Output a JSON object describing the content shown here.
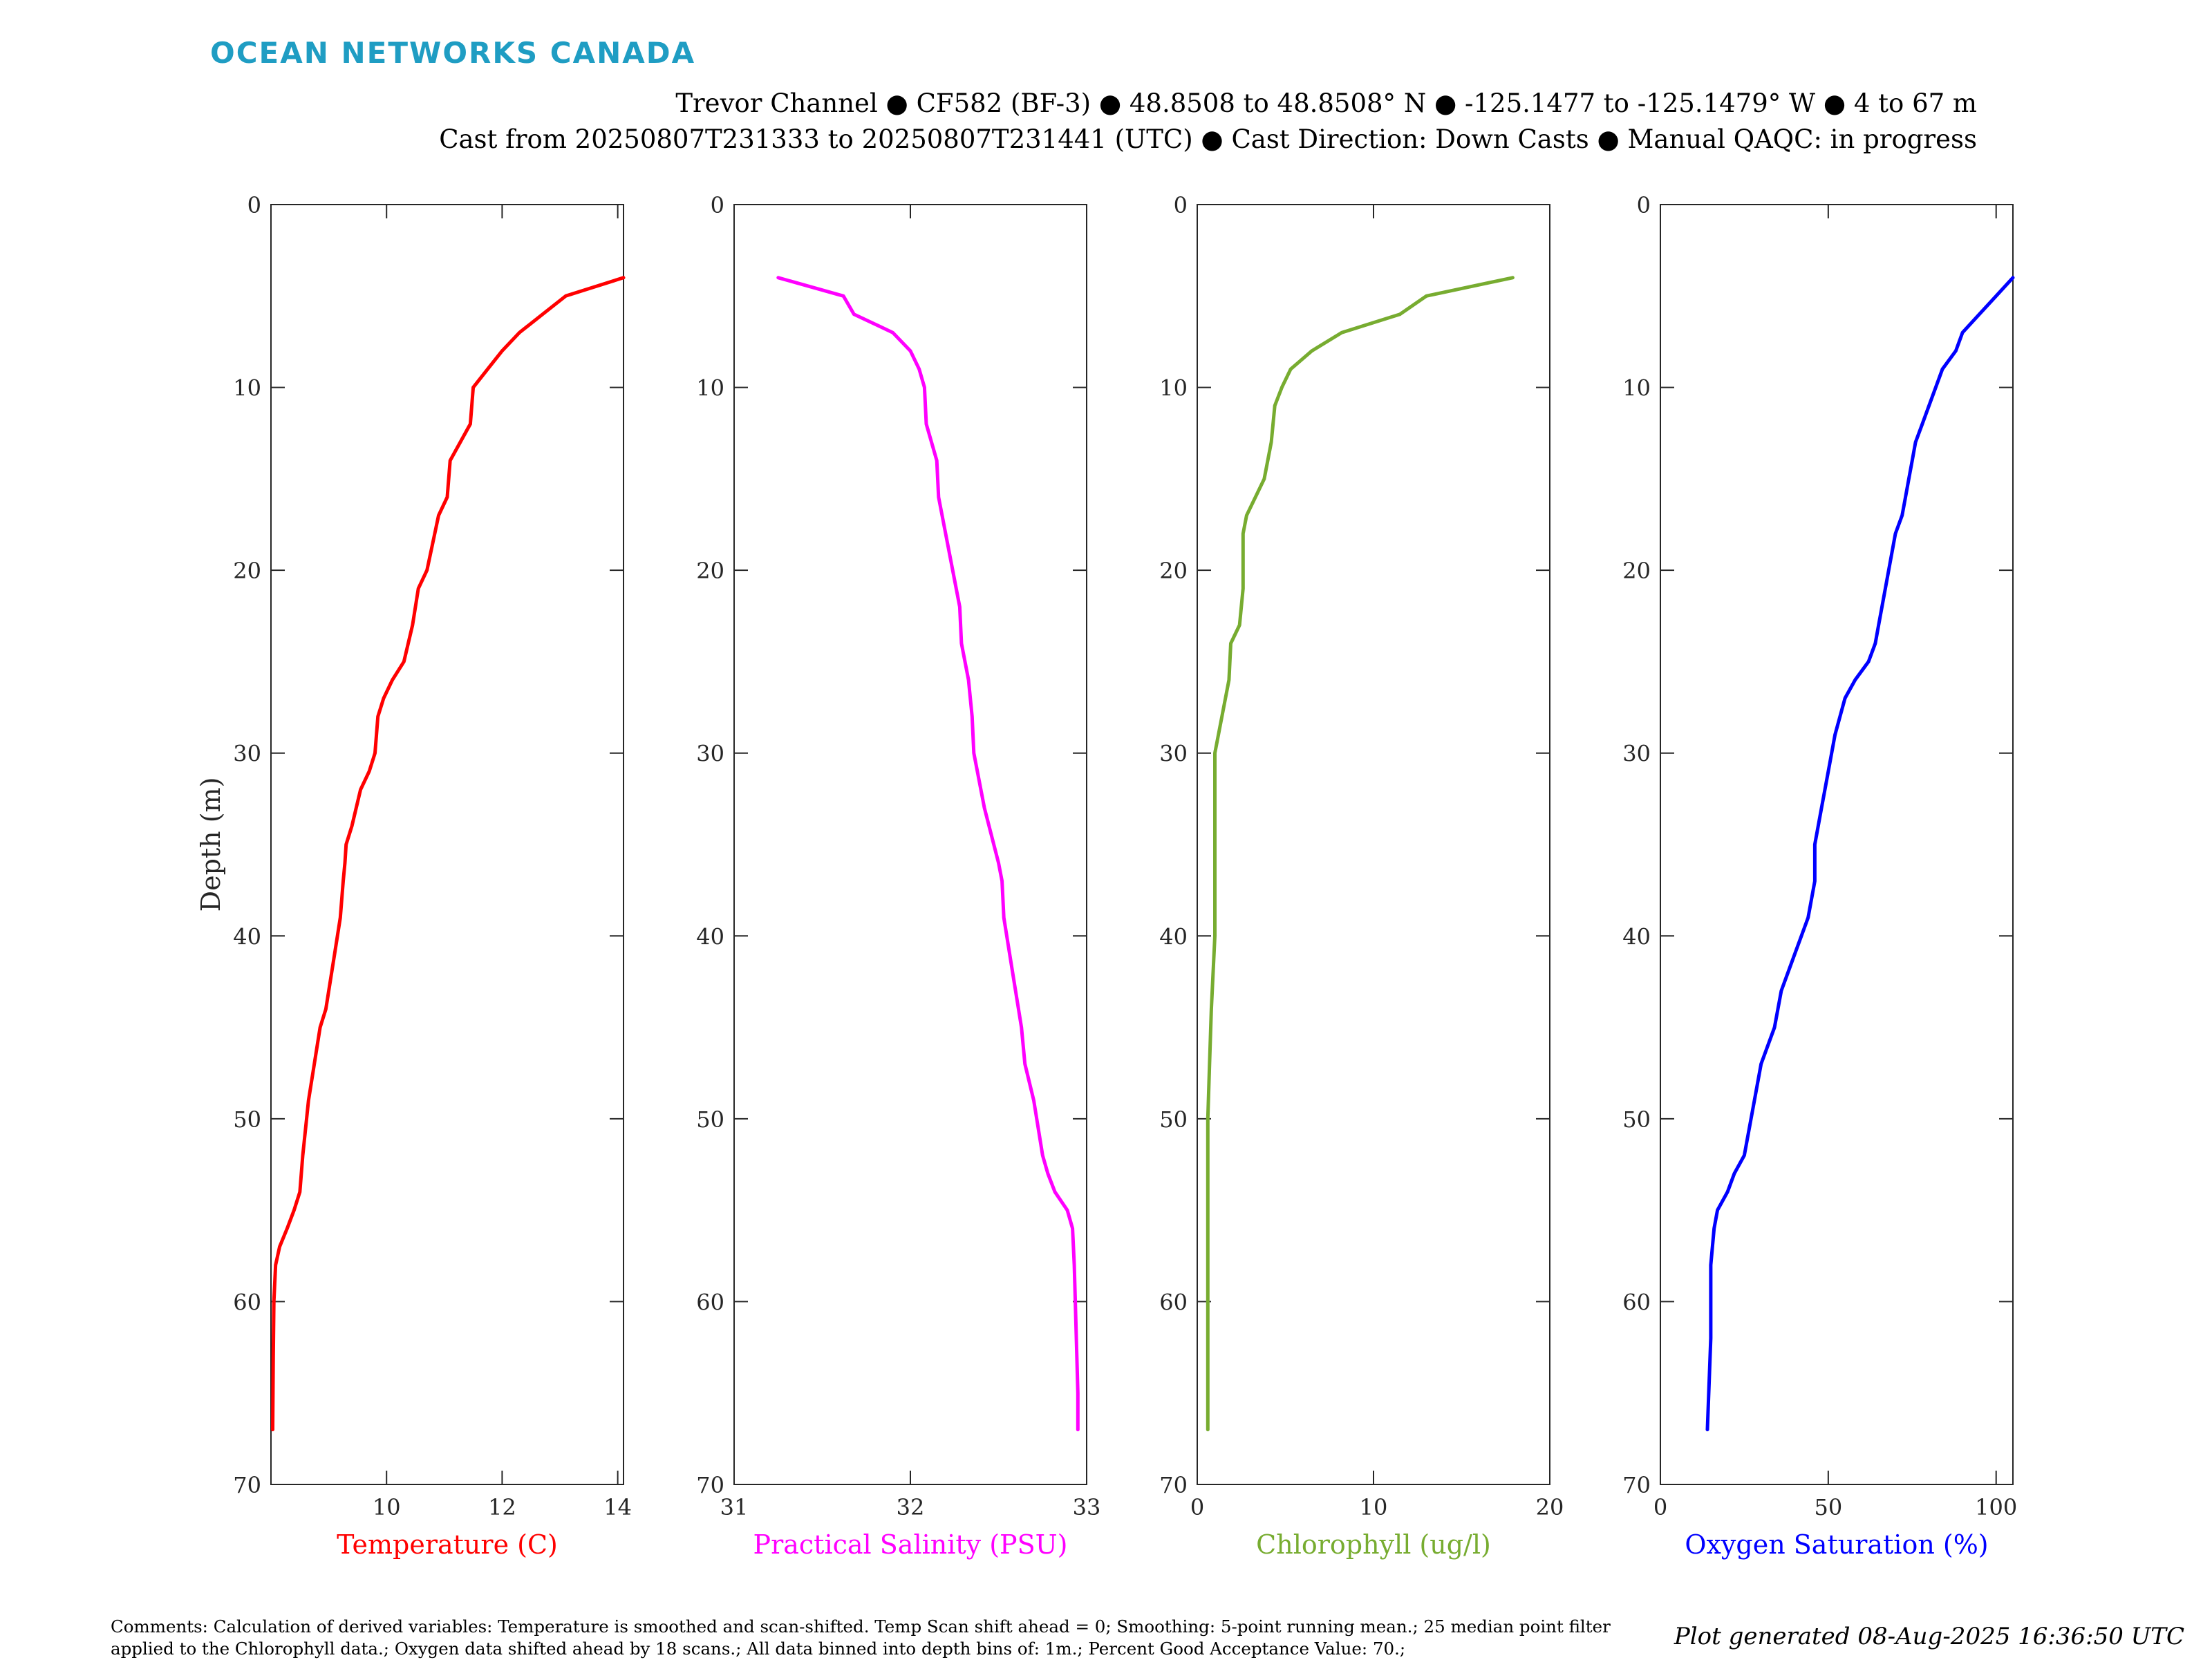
{
  "brand": "OCEAN NETWORKS CANADA",
  "header": {
    "line1": "Trevor Channel ● CF582 (BF-3) ● 48.8508 to 48.8508° N ● -125.1477 to -125.1479° W ● 4 to 67 m",
    "line2": "Cast from 20250807T231333 to 20250807T231441 (UTC) ● Cast Direction: Down Casts ● Manual QAQC: in progress"
  },
  "footer": {
    "comments": "Comments: Calculation of derived variables: Temperature is smoothed and scan-shifted. Temp Scan shift ahead = 0; Smoothing: 5-point running mean.; 25 median point filter applied to the Chlorophyll data.; Oxygen data shifted ahead by 18 scans.; All data binned into depth bins of: 1m.; Percent Good Acceptance Value: 70.;",
    "generated": "Plot generated 08-Aug-2025 16:36:50 UTC"
  },
  "chart_data": [
    {
      "type": "line",
      "name": "temperature",
      "xlabel": "Temperature (C)",
      "ylabel": "Depth (m)",
      "color": "#ff0000",
      "xlim": [
        8,
        14.1
      ],
      "xticks": [
        10,
        12,
        14
      ],
      "ylim": [
        0,
        70
      ],
      "yticks": [
        0,
        10,
        20,
        30,
        40,
        50,
        60,
        70
      ],
      "y_reversed": true,
      "x": [
        14.1,
        13.1,
        12.7,
        12.3,
        12.0,
        11.75,
        11.5,
        11.45,
        11.1,
        11.05,
        10.9,
        10.7,
        10.55,
        10.45,
        10.3,
        10.1,
        9.95,
        9.85,
        9.8,
        9.7,
        9.55,
        9.4,
        9.3,
        9.28,
        9.25,
        9.2,
        9.1,
        8.95,
        8.85,
        8.8,
        8.75,
        8.65,
        8.55,
        8.5,
        8.4,
        8.28,
        8.15,
        8.08,
        8.05,
        8.04,
        8.03
      ],
      "y": [
        4,
        5,
        6,
        7,
        8,
        9,
        10,
        12,
        14,
        16,
        17,
        20,
        21,
        23,
        25,
        26,
        27,
        28,
        30,
        31,
        32,
        34,
        35,
        36,
        37,
        39,
        41,
        44,
        45,
        46,
        47,
        49,
        52,
        54,
        55,
        56,
        57,
        58,
        60,
        63,
        67
      ]
    },
    {
      "type": "line",
      "name": "salinity",
      "xlabel": "Practical Salinity (PSU)",
      "ylabel": "",
      "color": "#ff00ff",
      "xlim": [
        31,
        33
      ],
      "xticks": [
        31,
        32,
        33
      ],
      "ylim": [
        0,
        70
      ],
      "yticks": [
        0,
        10,
        20,
        30,
        40,
        50,
        60,
        70
      ],
      "y_reversed": true,
      "x": [
        31.25,
        31.62,
        31.68,
        31.9,
        32.0,
        32.05,
        32.08,
        32.09,
        32.15,
        32.16,
        32.2,
        32.24,
        32.28,
        32.29,
        32.33,
        32.35,
        32.36,
        32.42,
        32.5,
        32.52,
        32.53,
        32.58,
        32.63,
        32.65,
        32.7,
        32.75,
        32.78,
        32.82,
        32.89,
        32.92,
        32.93,
        32.95,
        32.95
      ],
      "y": [
        4,
        5,
        6,
        7,
        8,
        9,
        10,
        12,
        14,
        16,
        18,
        20,
        22,
        24,
        26,
        28,
        30,
        33,
        36,
        37,
        39,
        42,
        45,
        47,
        49,
        52,
        53,
        54,
        55,
        56,
        58,
        65,
        67
      ]
    },
    {
      "type": "line",
      "name": "chlorophyll",
      "xlabel": "Chlorophyll (ug/l)",
      "ylabel": "",
      "color": "#77ac30",
      "xlim": [
        0,
        20
      ],
      "xticks": [
        0,
        10,
        20
      ],
      "ylim": [
        0,
        70
      ],
      "yticks": [
        0,
        10,
        20,
        30,
        40,
        50,
        60,
        70
      ],
      "y_reversed": true,
      "x": [
        17.9,
        13.0,
        11.5,
        8.2,
        6.5,
        5.3,
        4.8,
        4.4,
        4.2,
        3.8,
        2.8,
        2.6,
        2.6,
        2.4,
        1.9,
        1.8,
        1.6,
        1.2,
        1.0,
        1.0,
        0.8,
        0.7,
        0.6,
        0.6
      ],
      "y": [
        4,
        5,
        6,
        7,
        8,
        9,
        10,
        11,
        13,
        15,
        17,
        18,
        21,
        23,
        24,
        26,
        27,
        29,
        30,
        40,
        44,
        47,
        50,
        67
      ]
    },
    {
      "type": "line",
      "name": "oxygen",
      "xlabel": "Oxygen Saturation (%)",
      "ylabel": "",
      "color": "#0000ff",
      "xlim": [
        0,
        105
      ],
      "xticks": [
        0,
        50,
        100
      ],
      "ylim": [
        0,
        70
      ],
      "yticks": [
        0,
        10,
        20,
        30,
        40,
        50,
        60,
        70
      ],
      "y_reversed": true,
      "x": [
        105,
        100,
        95,
        90,
        88,
        84,
        82,
        80,
        78,
        76,
        75,
        74,
        73,
        72,
        70,
        68,
        65,
        64,
        62,
        58,
        55,
        52,
        50,
        48,
        46,
        46,
        44,
        42,
        40,
        36,
        34,
        30,
        28,
        25,
        22,
        20,
        17,
        16,
        15,
        15,
        14
      ],
      "y": [
        4,
        5,
        6,
        7,
        8,
        9,
        10,
        11,
        12,
        13,
        14,
        15,
        16,
        17,
        18,
        20,
        23,
        24,
        25,
        26,
        27,
        29,
        31,
        33,
        35,
        37,
        39,
        40,
        41,
        43,
        45,
        47,
        49,
        52,
        53,
        54,
        55,
        56,
        58,
        62,
        67
      ]
    }
  ]
}
